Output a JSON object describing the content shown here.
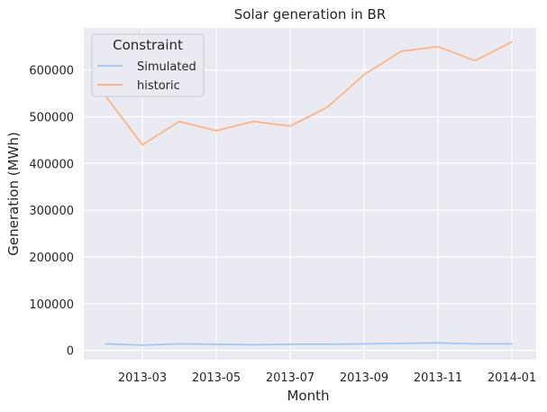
{
  "chart_data": {
    "type": "line",
    "title": "Solar generation in BR",
    "xlabel": "Month",
    "ylabel": "Generation (MWh)",
    "x": [
      "2013-02",
      "2013-03",
      "2013-04",
      "2013-05",
      "2013-06",
      "2013-07",
      "2013-08",
      "2013-09",
      "2013-10",
      "2013-11",
      "2013-12",
      "2014-01"
    ],
    "x_ticks": [
      "2013-03",
      "2013-05",
      "2013-07",
      "2013-09",
      "2013-11",
      "2014-01"
    ],
    "y_ticks": [
      "0",
      "100000",
      "200000",
      "300000",
      "400000",
      "500000",
      "600000"
    ],
    "ylim": [
      -20000,
      690000
    ],
    "grid": true,
    "legend": {
      "title": "Constraint",
      "placement": "top-left"
    },
    "series": [
      {
        "name": "Simulated",
        "color": "#a1c9f4",
        "values": [
          14000,
          11000,
          14000,
          13000,
          12000,
          13000,
          13000,
          14000,
          15000,
          16000,
          14000,
          14000
        ]
      },
      {
        "name": "historic",
        "color": "#ffb482",
        "values": [
          545000,
          440000,
          490000,
          470000,
          490000,
          480000,
          520000,
          590000,
          640000,
          650000,
          620000,
          660000
        ]
      }
    ]
  }
}
